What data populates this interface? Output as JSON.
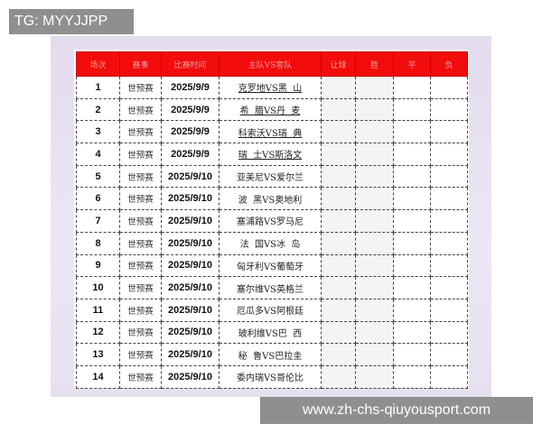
{
  "overlay": {
    "tg_label": "TG: MYYJJPP",
    "watermark": "www.zh-chs-qiuyousport.com"
  },
  "table": {
    "headers": [
      "场次",
      "赛事",
      "比赛时间",
      "主队VS客队",
      "让球",
      "胜",
      "平",
      "负"
    ],
    "rows": [
      {
        "no": "1",
        "event": "世预赛",
        "date": "2025/9/9",
        "match": "克罗地VS黑  山"
      },
      {
        "no": "2",
        "event": "世预赛",
        "date": "2025/9/9",
        "match": "希  腊VS丹  麦"
      },
      {
        "no": "3",
        "event": "世预赛",
        "date": "2025/9/9",
        "match": "科索沃VS瑞  典"
      },
      {
        "no": "4",
        "event": "世预赛",
        "date": "2025/9/9",
        "match": "瑞  士VS斯洛文"
      },
      {
        "no": "5",
        "event": "世预赛",
        "date": "2025/9/10",
        "match": "亚美尼VS爱尔兰"
      },
      {
        "no": "6",
        "event": "世预赛",
        "date": "2025/9/10",
        "match": "波  黑VS奥地利"
      },
      {
        "no": "7",
        "event": "世预赛",
        "date": "2025/9/10",
        "match": "塞浦路VS罗马尼"
      },
      {
        "no": "8",
        "event": "世预赛",
        "date": "2025/9/10",
        "match": "法  国VS冰  岛"
      },
      {
        "no": "9",
        "event": "世预赛",
        "date": "2025/9/10",
        "match": "匈牙利VS葡萄牙"
      },
      {
        "no": "10",
        "event": "世预赛",
        "date": "2025/9/10",
        "match": "塞尔维VS英格兰"
      },
      {
        "no": "11",
        "event": "世预赛",
        "date": "2025/9/10",
        "match": "厄瓜多VS阿根廷"
      },
      {
        "no": "12",
        "event": "世预赛",
        "date": "2025/9/10",
        "match": "玻利维VS巴  西"
      },
      {
        "no": "13",
        "event": "世预赛",
        "date": "2025/9/10",
        "match": "秘  鲁VS巴拉圭"
      },
      {
        "no": "14",
        "event": "世预赛",
        "date": "2025/9/10",
        "match": "委内瑞VS哥伦比"
      }
    ]
  },
  "colors": {
    "header_bg": "#f20c0c",
    "overlay_bg": "#8f8f8f"
  }
}
